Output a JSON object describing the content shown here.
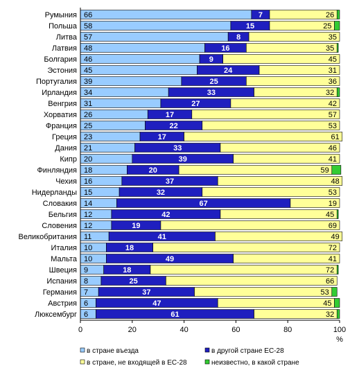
{
  "chart_data": {
    "type": "bar",
    "orientation": "horizontal",
    "stacked": true,
    "categories": [
      "Румыния",
      "Польша",
      "Литва",
      "Латвия",
      "Болгария",
      "Эстония",
      "Португалия",
      "Ирландия",
      "Венгрия",
      "Хорватия",
      "Франция",
      "Греция",
      "Дания",
      "Кипр",
      "Финляндия",
      "Чехия",
      "Нидерланды",
      "Словакия",
      "Бельгия",
      "Словения",
      "Великобритания",
      "Италия",
      "Мальта",
      "Швеция",
      "Испания",
      "Германия",
      "Австрия",
      "Люксембург"
    ],
    "series": [
      {
        "name": "в стране въезда",
        "color": "#99ccff",
        "values": [
          66,
          58,
          57,
          48,
          46,
          45,
          39,
          34,
          31,
          26,
          25,
          23,
          21,
          20,
          18,
          16,
          15,
          14,
          12,
          12,
          11,
          10,
          10,
          9,
          8,
          7,
          6,
          6
        ]
      },
      {
        "name": "в другой стране ЕС-28",
        "color": "#1f1fbf",
        "values": [
          7,
          15,
          8,
          16,
          9,
          24,
          25,
          33,
          27,
          17,
          22,
          17,
          33,
          39,
          20,
          37,
          32,
          67,
          42,
          19,
          41,
          18,
          49,
          18,
          25,
          37,
          47,
          61
        ]
      },
      {
        "name": "в стране, не входящей в ЕС-28",
        "color": "#ffff99",
        "values": [
          26,
          25,
          35,
          35,
          45,
          31,
          36,
          32,
          42,
          57,
          53,
          61,
          46,
          41,
          59,
          48,
          53,
          19,
          45,
          69,
          49,
          72,
          41,
          72,
          66,
          53,
          45,
          32
        ]
      },
      {
        "name": "неизвестно, в какой стране",
        "color": "#33cc33",
        "values": [
          1,
          2,
          0,
          0.5,
          0,
          0,
          0,
          1,
          0,
          0,
          0,
          0,
          0,
          0,
          3.5,
          0,
          0,
          0,
          0.5,
          0,
          0,
          0,
          0,
          0.5,
          0,
          2,
          2,
          1
        ]
      }
    ],
    "x_ticks": [
      "0",
      "20",
      "40",
      "60",
      "80",
      "100"
    ],
    "x_unit": "%",
    "xlim": [
      0,
      100
    ],
    "legend_position": "bottom"
  }
}
